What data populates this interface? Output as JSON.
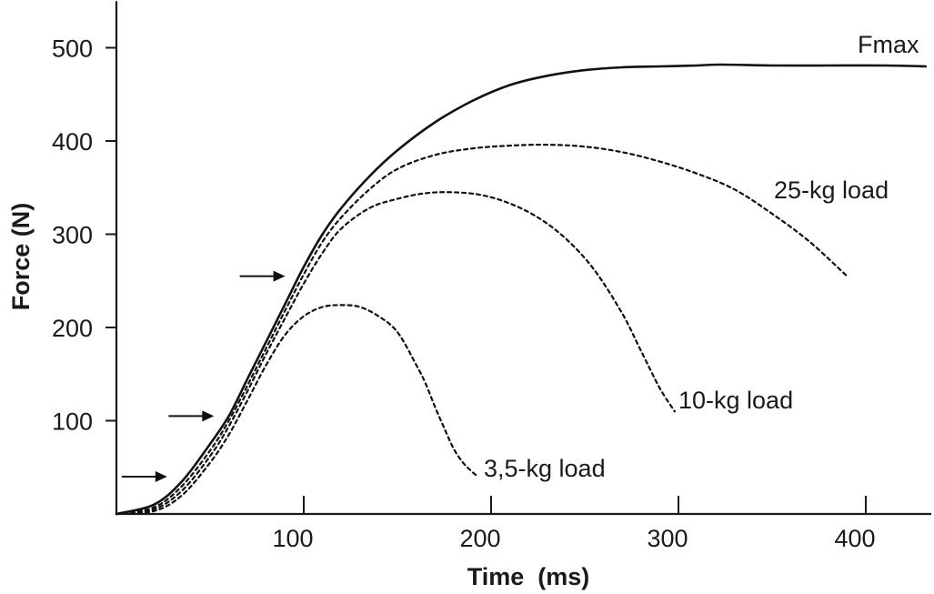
{
  "chart_data": {
    "type": "line",
    "title": "",
    "xlabel": "Time  (ms)",
    "ylabel": "Force (N)",
    "xlim": [
      0,
      435
    ],
    "ylim": [
      0,
      550
    ],
    "xticks": [
      100,
      200,
      300,
      400
    ],
    "yticks": [
      100,
      200,
      300,
      400,
      500
    ],
    "series": [
      {
        "name": "Fmax",
        "style": "solid",
        "x": [
          0,
          20,
          35,
          50,
          60,
          70,
          80,
          90,
          100,
          110,
          120,
          135,
          150,
          170,
          190,
          210,
          230,
          250,
          270,
          290,
          310,
          323,
          350,
          380,
          410,
          432
        ],
        "y": [
          0,
          10,
          35,
          75,
          105,
          145,
          185,
          225,
          265,
          300,
          328,
          362,
          390,
          420,
          443,
          460,
          470,
          476,
          479,
          480,
          481,
          482,
          481,
          481,
          481,
          480
        ]
      },
      {
        "name": "25-kg load",
        "style": "dotted",
        "x": [
          0,
          20,
          35,
          50,
          60,
          70,
          80,
          90,
          100,
          110,
          120,
          135,
          150,
          170,
          190,
          210,
          230,
          250,
          270,
          290,
          310,
          330,
          350,
          370,
          390
        ],
        "y": [
          0,
          7,
          30,
          68,
          100,
          138,
          178,
          218,
          257,
          292,
          318,
          348,
          370,
          385,
          392,
          395,
          396,
          394,
          388,
          378,
          365,
          348,
          322,
          292,
          255
        ]
      },
      {
        "name": "10-kg load",
        "style": "dotted",
        "x": [
          0,
          20,
          35,
          50,
          60,
          70,
          80,
          90,
          100,
          110,
          120,
          135,
          150,
          165,
          180,
          195,
          210,
          225,
          240,
          255,
          270,
          280,
          290,
          298
        ],
        "y": [
          0,
          5,
          25,
          62,
          94,
          132,
          172,
          210,
          247,
          280,
          306,
          328,
          338,
          344,
          345,
          342,
          333,
          318,
          295,
          262,
          215,
          175,
          135,
          110
        ]
      },
      {
        "name": "3,5-kg load",
        "style": "dotted",
        "x": [
          0,
          20,
          35,
          50,
          60,
          70,
          80,
          90,
          100,
          110,
          120,
          130,
          140,
          150,
          160,
          165,
          170,
          175,
          180,
          185,
          190,
          193
        ],
        "y": [
          0,
          3,
          20,
          55,
          85,
          122,
          160,
          192,
          212,
          222,
          224,
          222,
          212,
          195,
          160,
          140,
          115,
          92,
          70,
          55,
          45,
          40
        ]
      }
    ],
    "annotations": [
      {
        "type": "arrow",
        "points_to": "Fmax",
        "x": 30,
        "y": 40
      },
      {
        "type": "arrow",
        "points_to": "Fmax",
        "x": 55,
        "y": 105
      },
      {
        "type": "arrow",
        "points_to": "Fmax",
        "x": 93,
        "y": 255
      }
    ]
  }
}
